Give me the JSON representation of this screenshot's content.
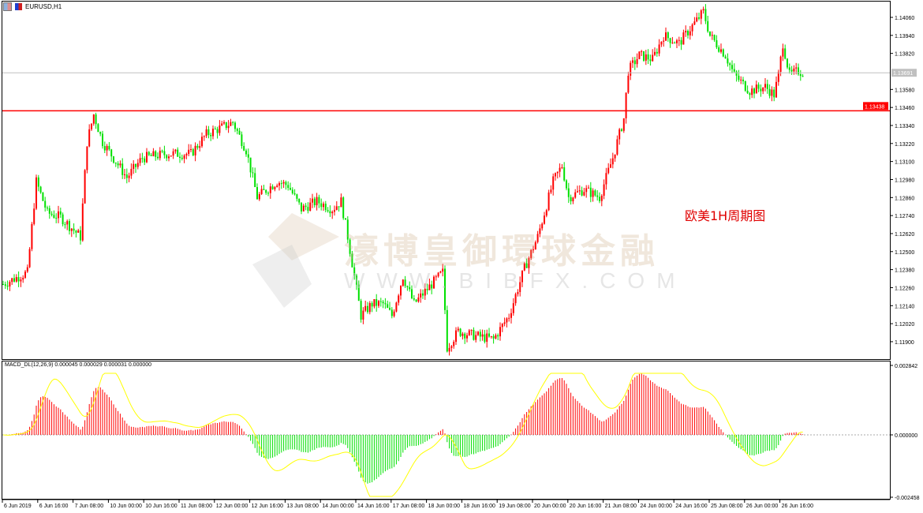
{
  "window": {
    "title": "EURUSD,H1"
  },
  "indicator": {
    "label": "MACD_DL(12,26,9) 0.000045 0.000029 0.000031 0.000000"
  },
  "annotation": "欧美1H周期图",
  "watermark": {
    "cn": "濠博皇御環球金融",
    "url": "WWW.BIBFX.COM"
  },
  "colors": {
    "bull": "#ff0000",
    "bear": "#00e000",
    "hline": "#ff0000",
    "signal": "#ffff00",
    "bid": "#c0c0c0"
  },
  "chart_data": {
    "type": "candlestick",
    "symbol": "EURUSD",
    "timeframe": "H1",
    "price_axis": {
      "ticks": [
        "1.14060",
        "1.13940",
        "1.13820",
        "1.13580",
        "1.13460",
        "1.13340",
        "1.13220",
        "1.13100",
        "1.12980",
        "1.12860",
        "1.12740",
        "1.12620",
        "1.12500",
        "1.12380",
        "1.12260",
        "1.12140",
        "1.12020",
        "1.11900"
      ],
      "ylim": [
        1.1183,
        1.1413
      ]
    },
    "current_price": "1.13691",
    "horizontal_line": "1.13438",
    "time_axis": [
      "6 Jun 2019",
      "6 Jun 16:00",
      "7 Jun 08:00",
      "10 Jun 00:00",
      "10 Jun 16:00",
      "11 Jun 08:00",
      "12 Jun 00:00",
      "12 Jun 16:00",
      "13 Jun 08:00",
      "14 Jun 00:00",
      "14 Jun 16:00",
      "17 Jun 08:00",
      "18 Jun 00:00",
      "18 Jun 16:00",
      "19 Jun 08:00",
      "20 Jun 00:00",
      "20 Jun 16:00",
      "21 Jun 08:00",
      "24 Jun 00:00",
      "24 Jun 16:00",
      "25 Jun 08:00",
      "26 Jun 00:00",
      "26 Jun 16:00"
    ],
    "price_path": [
      [
        0,
        1.12283
      ],
      [
        11,
        1.12362
      ],
      [
        15,
        1.12967
      ],
      [
        20,
        1.12757
      ],
      [
        26,
        1.1273
      ],
      [
        35,
        1.12599
      ],
      [
        38,
        1.1323
      ],
      [
        41,
        1.13414
      ],
      [
        45,
        1.1323
      ],
      [
        56,
        1.12993
      ],
      [
        63,
        1.13124
      ],
      [
        74,
        1.13151
      ],
      [
        85,
        1.13151
      ],
      [
        92,
        1.13282
      ],
      [
        104,
        1.13361
      ],
      [
        110,
        1.13177
      ],
      [
        115,
        1.12862
      ],
      [
        124,
        1.12967
      ],
      [
        129,
        1.12941
      ],
      [
        135,
        1.12783
      ],
      [
        142,
        1.12835
      ],
      [
        149,
        1.12783
      ],
      [
        153,
        1.12835
      ],
      [
        156,
        1.12599
      ],
      [
        162,
        1.12073
      ],
      [
        167,
        1.12152
      ],
      [
        172,
        1.12152
      ],
      [
        176,
        1.12073
      ],
      [
        181,
        1.12336
      ],
      [
        186,
        1.12152
      ],
      [
        194,
        1.12283
      ],
      [
        199,
        1.12362
      ],
      [
        201,
        1.11863
      ],
      [
        206,
        1.11968
      ],
      [
        213,
        1.11942
      ],
      [
        222,
        1.11916
      ],
      [
        229,
        1.12073
      ],
      [
        236,
        1.12389
      ],
      [
        242,
        1.12599
      ],
      [
        249,
        1.12967
      ],
      [
        253,
        1.13072
      ],
      [
        256,
        1.12862
      ],
      [
        263,
        1.12914
      ],
      [
        270,
        1.12862
      ],
      [
        276,
        1.13124
      ],
      [
        281,
        1.13387
      ],
      [
        283,
        1.13703
      ],
      [
        288,
        1.13808
      ],
      [
        294,
        1.13781
      ],
      [
        299,
        1.13939
      ],
      [
        306,
        1.13887
      ],
      [
        310,
        1.13965
      ],
      [
        317,
        1.14097
      ],
      [
        320,
        1.13939
      ],
      [
        327,
        1.13808
      ],
      [
        331,
        1.13676
      ],
      [
        338,
        1.13571
      ],
      [
        345,
        1.13597
      ],
      [
        349,
        1.13545
      ],
      [
        351,
        1.13676
      ],
      [
        353,
        1.13887
      ],
      [
        356,
        1.13676
      ],
      [
        360,
        1.13703
      ],
      [
        362,
        1.13692
      ]
    ],
    "macd_axis": {
      "ticks": [
        "0.002842",
        "0.000000",
        "-0.002458"
      ],
      "ylim": [
        -0.002458,
        0.002842
      ]
    }
  }
}
